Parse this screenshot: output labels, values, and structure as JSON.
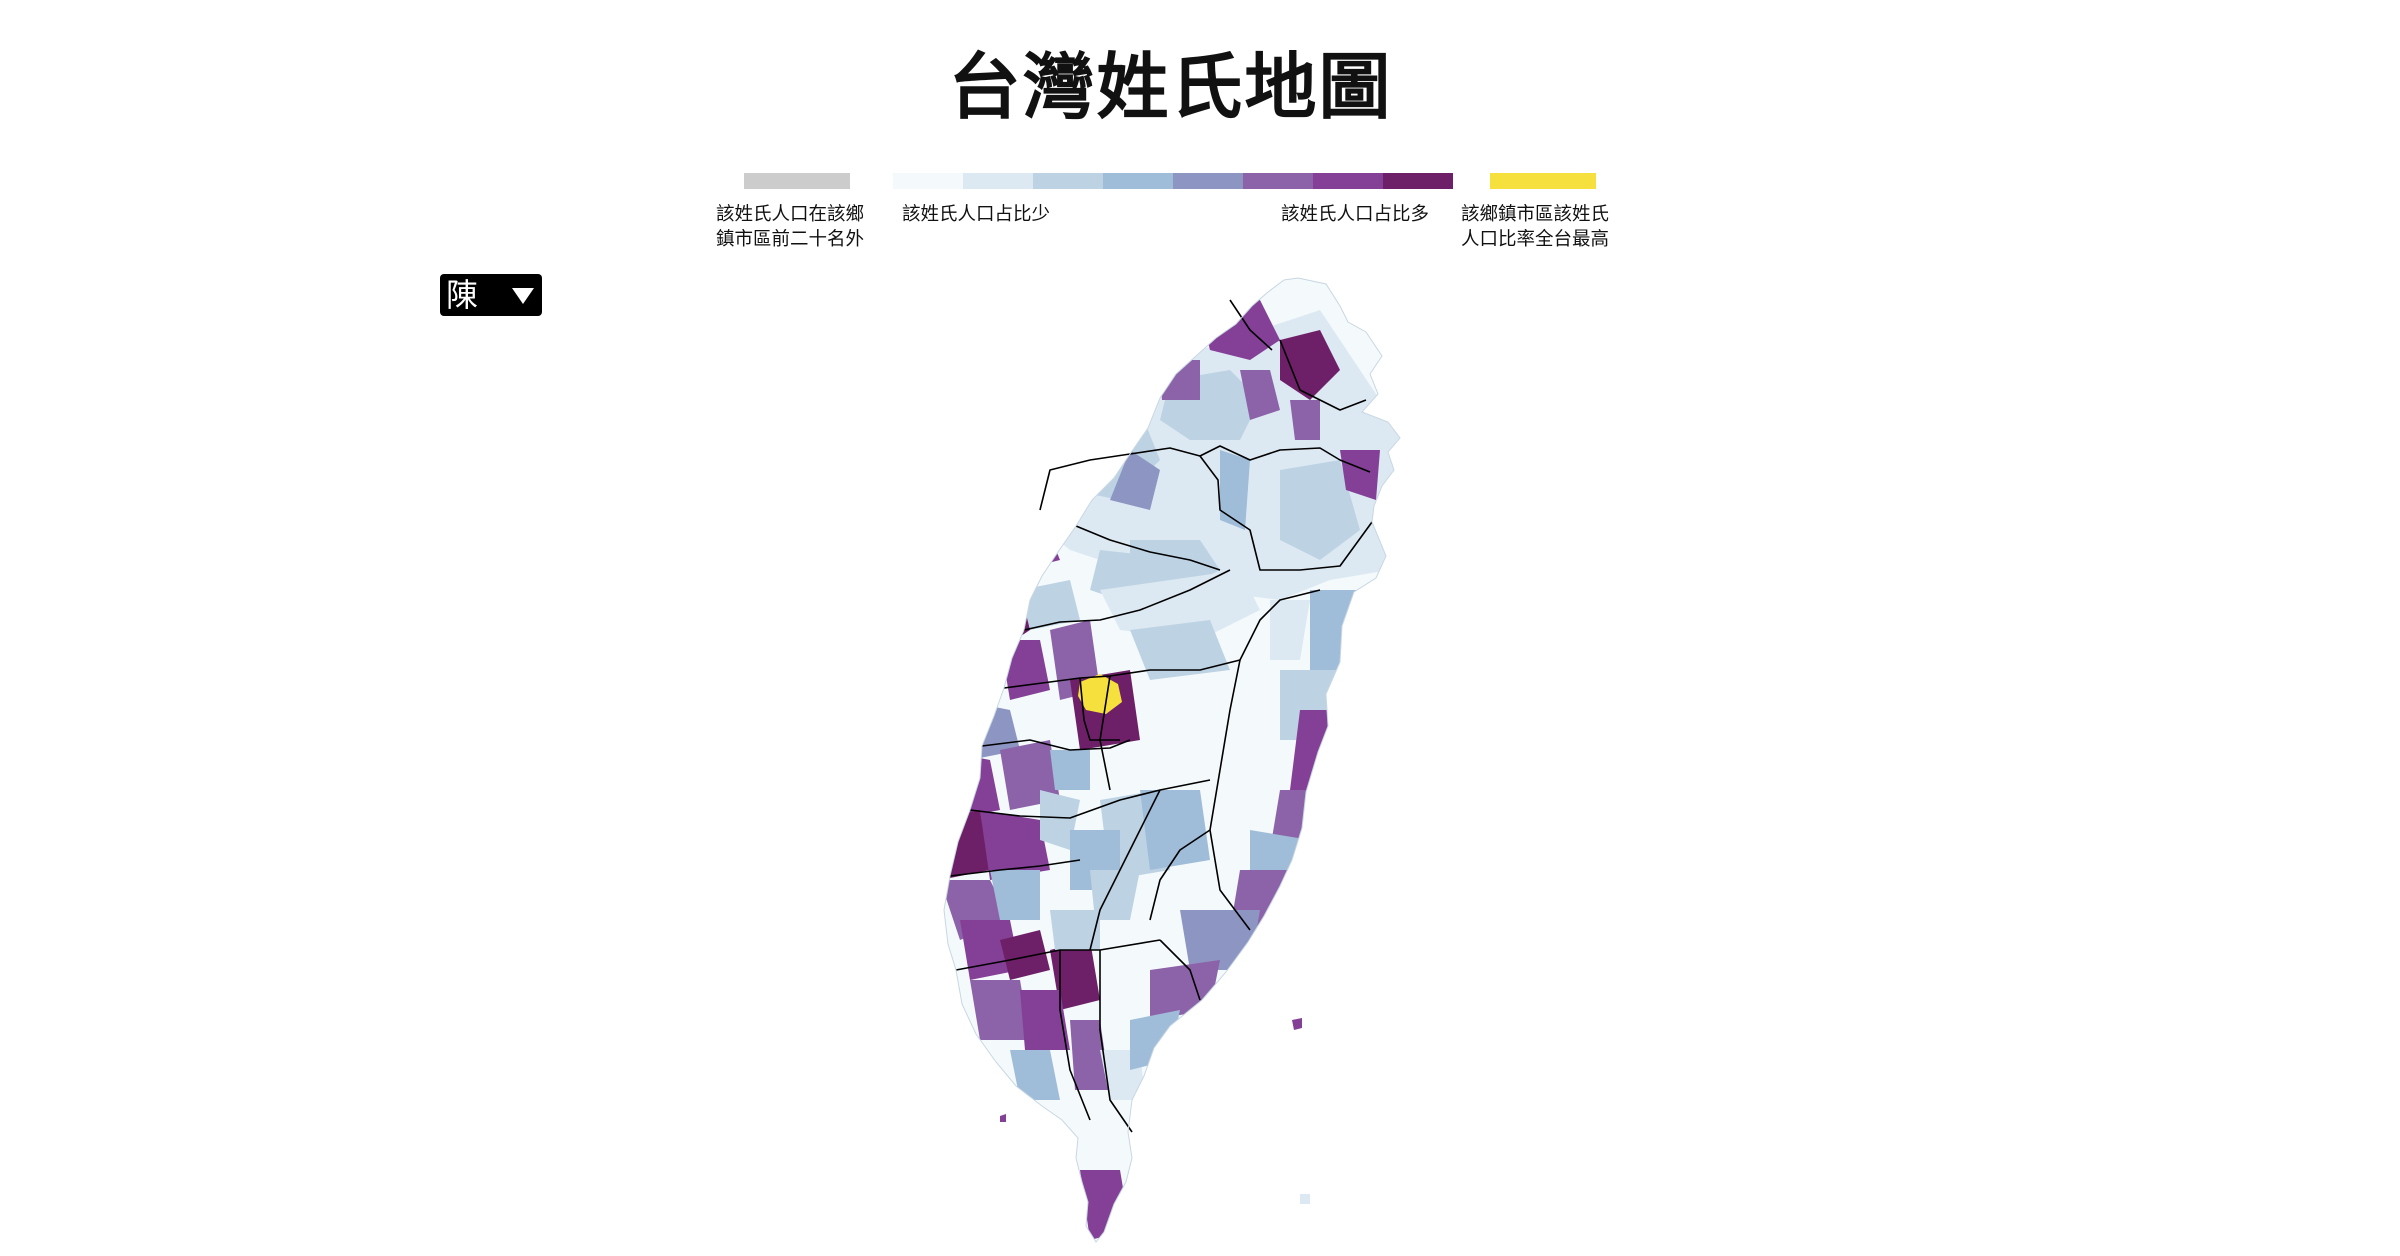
{
  "page": {
    "title": "台灣姓氏地圖"
  },
  "legend": {
    "not_in_top20": {
      "label_line1": "該姓氏人口在該鄉",
      "label_line2": "鎮市區前二十名外",
      "color": "#cccccc"
    },
    "scale": {
      "low_label": "該姓氏人口占比少",
      "high_label": "該姓氏人口占比多",
      "colors": [
        "#f4fafc",
        "#dde9f2",
        "#bdd3e4",
        "#9fbcd9",
        "#8d95c3",
        "#8c62a9",
        "#843f97",
        "#6d2067"
      ]
    },
    "highest": {
      "label_line1": "該鄉鎮市區該姓氏",
      "label_line2": "人口比率全台最高",
      "color": "#f5e03d"
    }
  },
  "selector": {
    "selected_surname": "陳"
  },
  "map": {
    "highlight_color": "#f5e03d",
    "border_color": "#000000",
    "base_color": "#f4fafc"
  }
}
